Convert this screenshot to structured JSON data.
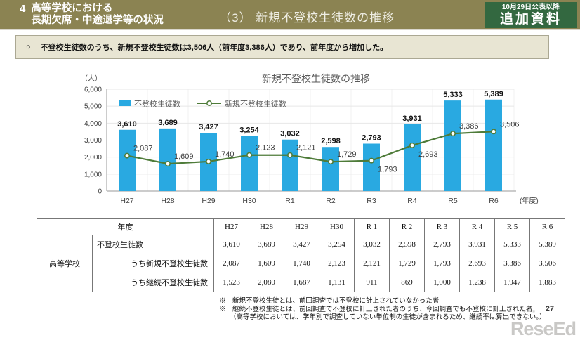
{
  "header": {
    "section_number": "4",
    "section_title_line1": "高等学校における",
    "section_title_line2": "長期欠席・中途退学等の状況",
    "page_title": "（3） 新規不登校生徒数の推移",
    "badge": {
      "line1": "10月29日公表以降",
      "line2": "追加資料"
    }
  },
  "summary_note": {
    "bullet": "○",
    "text": "不登校生徒数のうち、新規不登校生徒数は3,506人（前年度3,386人）であり、前年度から増加した。"
  },
  "chart_data": {
    "type": "bar",
    "title": "新規不登校生徒数の推移",
    "unit_label": "（人）",
    "xaxis_suffix": "(年度)",
    "categories": [
      "H27",
      "H28",
      "H29",
      "H30",
      "R1",
      "R2",
      "R3",
      "R4",
      "R5",
      "R6"
    ],
    "series": [
      {
        "name": "不登校生徒数",
        "type": "bar",
        "color": "#29a9e1",
        "values": [
          3610,
          3689,
          3427,
          3254,
          3032,
          2598,
          2793,
          3931,
          5333,
          5389
        ]
      },
      {
        "name": "新規不登校生徒数",
        "type": "line",
        "color": "#4e7b39",
        "values": [
          2087,
          1609,
          1740,
          2123,
          2121,
          1729,
          1793,
          2693,
          3386,
          3506
        ]
      }
    ],
    "ylim": [
      0,
      6000
    ],
    "ytick_step": 1000,
    "grid": true,
    "legend_position": "top-left"
  },
  "table": {
    "year_header_label": "年度",
    "row_group_label": "高等学校",
    "years": [
      "H27",
      "H28",
      "H29",
      "H30",
      "R 1",
      "R 2",
      "R 3",
      "R 4",
      "R 5",
      "R 6"
    ],
    "rows": [
      {
        "label": "不登校生徒数",
        "values": [
          "3,610",
          "3,689",
          "3,427",
          "3,254",
          "3,032",
          "2,598",
          "2,793",
          "3,931",
          "5,333",
          "5,389"
        ]
      },
      {
        "label": "うち新規不登校生徒数",
        "values": [
          "2,087",
          "1,609",
          "1,740",
          "2,123",
          "2,121",
          "1,729",
          "1,793",
          "2,693",
          "3,386",
          "3,506"
        ]
      },
      {
        "label": "うち継続不登校生徒数",
        "values": [
          "1,523",
          "2,080",
          "1,687",
          "1,131",
          "911",
          "869",
          "1,000",
          "1,238",
          "1,947",
          "1,883"
        ]
      }
    ]
  },
  "footnotes": [
    "※　新規不登校生徒とは、前回調査では不登校に計上されていなかった者",
    "※　継続不登校生徒とは、前回調査で不登校に計上された者のうち、今回調査でも不登校に計上された者",
    "（高等学校においては、学年別で調査していない単位制の生徒が含まれるため、継続率は算出できない。）"
  ],
  "footer": {
    "page_number": "27",
    "logo_text": "ReseEd",
    "logo_ruby": "リシード"
  },
  "colors": {
    "header_bg": "#8b8352",
    "badge_bg": "#336840",
    "note_bg": "#e8e5d3",
    "bar": "#29a9e1",
    "line": "#4e7b39",
    "title_text": "#595959"
  }
}
